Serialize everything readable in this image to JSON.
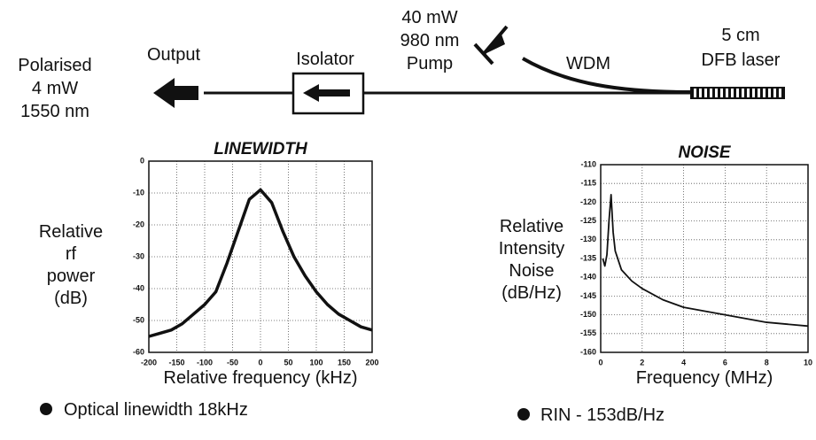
{
  "diagram": {
    "output_label": [
      "Polarised",
      "4 mW",
      "1550 nm"
    ],
    "output": "Output",
    "isolator": "Isolator",
    "pump": [
      "40 mW",
      "980 nm",
      "Pump"
    ],
    "wdm": "WDM",
    "laser": [
      "5 cm",
      "DFB laser"
    ]
  },
  "chart_data": [
    {
      "type": "line",
      "title": "LINEWIDTH",
      "xlabel": "Relative frequency  (kHz)",
      "ylabel": [
        "Relative",
        "rf",
        "power",
        "(dB)"
      ],
      "x": [
        -200,
        -180,
        -160,
        -140,
        -120,
        -100,
        -80,
        -60,
        -40,
        -20,
        0,
        20,
        40,
        60,
        80,
        100,
        120,
        140,
        160,
        180,
        200
      ],
      "values": [
        -55,
        -54,
        -53,
        -51,
        -48,
        -45,
        -41,
        -32,
        -22,
        -12,
        -9,
        -13,
        -22,
        -30,
        -36,
        -41,
        -45,
        -48,
        -50,
        -52,
        -53
      ],
      "color": "#111111",
      "xlim": [
        -200,
        200
      ],
      "ylim": [
        -60,
        0
      ],
      "xticks": [
        -200,
        -150,
        -100,
        -50,
        0,
        50,
        100,
        150,
        200
      ],
      "yticks": [
        0,
        -10,
        -20,
        -30,
        -40,
        -50,
        -60
      ],
      "grid": true
    },
    {
      "type": "line",
      "title": "NOISE",
      "xlabel": "Frequency  (MHz)",
      "ylabel": [
        "Relative",
        "Intensity",
        "Noise",
        "(dB/Hz)"
      ],
      "x": [
        0.1,
        0.2,
        0.3,
        0.4,
        0.5,
        0.6,
        0.7,
        1,
        1.5,
        2,
        3,
        4,
        5,
        6,
        7,
        8,
        9,
        10
      ],
      "values": [
        -135,
        -137,
        -134,
        -125,
        -118,
        -128,
        -133,
        -138,
        -141,
        -143,
        -146,
        -148,
        -149,
        -150,
        -151,
        -152,
        -152.5,
        -153
      ],
      "color": "#111111",
      "xlim": [
        0,
        10
      ],
      "ylim": [
        -160,
        -110
      ],
      "xticks": [
        0,
        2,
        4,
        6,
        8,
        10
      ],
      "yticks": [
        -110,
        -115,
        -120,
        -125,
        -130,
        -135,
        -140,
        -145,
        -150,
        -155,
        -160
      ],
      "grid": true
    }
  ],
  "notes": [
    "Optical linewidth  18kHz",
    "RIN  - 153dB/Hz"
  ]
}
